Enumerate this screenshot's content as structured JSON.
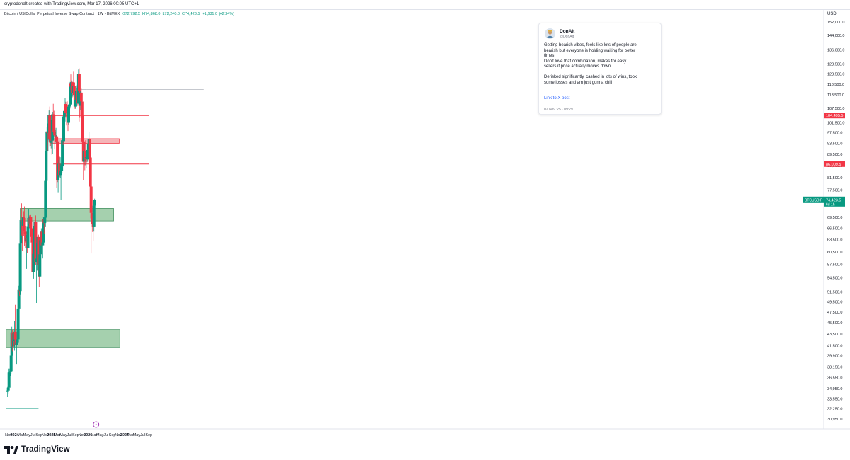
{
  "header": {
    "created_by": "cryptodonalt created with TradingView.com, Mar 17, 2026 00:05 UTC+1",
    "symbol_title": "Bitcoin / US Dollar Perpetual Inverse Swap Contract · 1W · BitMEX",
    "ohlc": {
      "o": "O72,792.5",
      "h": "H74,868.0",
      "l": "L72,240.0",
      "c": "C74,423.5",
      "change": "+1,631.0 (+2.24%)"
    },
    "currency": "USD"
  },
  "branding": {
    "logo_text": "TradingView"
  },
  "tweet": {
    "name": "DonAlt",
    "handle": "@DonAlt",
    "paragraph1": [
      "Getting bearish vibes, feels like lots of people are",
      "bearish but everyone is holding waiting for better",
      "times",
      "Don't love that combination, makes for easy",
      "sellers if price actually moves down"
    ],
    "paragraph2": [
      "Derisked significantly, cashed in lots of wins, took",
      "some losses and am just gonna chill"
    ],
    "link_label": "Link to X post",
    "date": "02 Nov '25 · 09:29"
  },
  "colors": {
    "up": "#089981",
    "down": "#f23645",
    "green_zone_fill": "#a5d0ae",
    "green_zone_border": "#3f8f5c",
    "red_zone_fill": "#f5b5b8",
    "red_line": "#f23645",
    "accent": "#2962ff"
  },
  "chart_data": {
    "type": "candlestick",
    "timeframe": "1W",
    "y_scale": "log",
    "ylim": [
      29750,
      160000
    ],
    "y_ticks": [
      30950,
      32250,
      33550,
      34950,
      36550,
      38150,
      39900,
      41500,
      43500,
      45500,
      47500,
      49500,
      51500,
      54500,
      57500,
      60500,
      63500,
      66500,
      69500,
      73500,
      77500,
      81500,
      85500,
      89500,
      93500,
      97500,
      101500,
      107500,
      113500,
      118500,
      123500,
      128500,
      136000,
      144000,
      152000
    ],
    "x_ticks": [
      "Nov",
      "2024",
      "Mar",
      "May",
      "Jul",
      "Sep",
      "Nov",
      "2025",
      "Mar",
      "May",
      "Jul",
      "Sep",
      "Nov",
      "2026",
      "Mar",
      "May",
      "Jul",
      "Sep",
      "Nov",
      "2027",
      "Mar",
      "May",
      "Jul",
      "Sep"
    ],
    "bold_x_ticks": [
      "2024",
      "2025",
      "2026",
      "2027"
    ],
    "price_labels": [
      {
        "label": "104,495.5",
        "value": 104495.5
      },
      {
        "label": "86,009.5",
        "value": 86009.5
      }
    ],
    "last_price": {
      "symbol": "BTCUSD.P",
      "value_label": "74,423.5",
      "countdown": "6d 1h",
      "value": 74423.5
    },
    "zones": [
      {
        "kind": "support",
        "from": "2024-02-26",
        "to": "2026-09-14",
        "low": 68500,
        "high": 72000
      },
      {
        "kind": "support",
        "from": "2023-10-09",
        "to": "2026-11-16",
        "low": 41200,
        "high": 44300
      },
      {
        "kind": "resistance",
        "from": "2024-12-30",
        "to": "2026-11-09",
        "low": 93500,
        "high": 95200
      }
    ],
    "lines": [
      {
        "kind": "resistance",
        "value": 104495.5,
        "from": "2024-11-25",
        "to": "2027-08-30"
      },
      {
        "kind": "resistance",
        "value": 86009.5,
        "from": "2025-01-20",
        "to": "2027-08-30"
      },
      {
        "kind": "tweet-connector",
        "value": 116000,
        "from": "2025-10-06",
        "to": "2025-12-22"
      },
      {
        "kind": "range-marker",
        "value": 32300,
        "from": "2023-10-09",
        "to": "2024-08-26"
      }
    ],
    "candles": [
      {
        "date": "2023-10-23",
        "o": 34500,
        "h": 35200,
        "l": 33800,
        "c": 34700
      },
      {
        "date": "2023-10-30",
        "o": 34700,
        "h": 35900,
        "l": 34200,
        "c": 35100
      },
      {
        "date": "2023-11-06",
        "o": 35100,
        "h": 37900,
        "l": 34900,
        "c": 37300
      },
      {
        "date": "2023-11-13",
        "o": 37300,
        "h": 37900,
        "l": 35600,
        "c": 37400
      },
      {
        "date": "2023-11-20",
        "o": 37400,
        "h": 38400,
        "l": 36800,
        "c": 37500
      },
      {
        "date": "2023-11-27",
        "o": 37500,
        "h": 40200,
        "l": 37100,
        "c": 39900
      },
      {
        "date": "2023-12-04",
        "o": 39900,
        "h": 44800,
        "l": 39600,
        "c": 43800
      },
      {
        "date": "2023-12-11",
        "o": 43800,
        "h": 44300,
        "l": 40600,
        "c": 41400
      },
      {
        "date": "2023-12-18",
        "o": 41400,
        "h": 44100,
        "l": 40900,
        "c": 43600
      },
      {
        "date": "2023-12-25",
        "o": 43600,
        "h": 43800,
        "l": 41400,
        "c": 42300
      },
      {
        "date": "2024-01-01",
        "o": 42300,
        "h": 45900,
        "l": 40700,
        "c": 43900
      },
      {
        "date": "2024-01-08",
        "o": 43900,
        "h": 48900,
        "l": 41700,
        "c": 42600
      },
      {
        "date": "2024-01-15",
        "o": 42600,
        "h": 43200,
        "l": 40500,
        "c": 41600
      },
      {
        "date": "2024-01-22",
        "o": 41600,
        "h": 42300,
        "l": 38500,
        "c": 42100
      },
      {
        "date": "2024-01-29",
        "o": 42100,
        "h": 43800,
        "l": 41800,
        "c": 42600
      },
      {
        "date": "2024-02-05",
        "o": 42600,
        "h": 48500,
        "l": 42300,
        "c": 48200
      },
      {
        "date": "2024-02-12",
        "o": 48200,
        "h": 52800,
        "l": 47700,
        "c": 51900
      },
      {
        "date": "2024-02-19",
        "o": 51900,
        "h": 52900,
        "l": 50700,
        "c": 51700
      },
      {
        "date": "2024-02-26",
        "o": 51700,
        "h": 63900,
        "l": 50900,
        "c": 62500
      },
      {
        "date": "2024-03-04",
        "o": 62500,
        "h": 69300,
        "l": 59500,
        "c": 68700
      },
      {
        "date": "2024-03-11",
        "o": 68700,
        "h": 73500,
        "l": 64600,
        "c": 68400
      },
      {
        "date": "2024-03-18",
        "o": 68400,
        "h": 68600,
        "l": 60800,
        "c": 67200
      },
      {
        "date": "2024-03-25",
        "o": 67200,
        "h": 71600,
        "l": 66500,
        "c": 69600
      },
      {
        "date": "2024-04-01",
        "o": 69600,
        "h": 71200,
        "l": 64500,
        "c": 69300
      },
      {
        "date": "2024-04-08",
        "o": 69300,
        "h": 72600,
        "l": 62000,
        "c": 65600
      },
      {
        "date": "2024-04-15",
        "o": 65600,
        "h": 67200,
        "l": 59700,
        "c": 64900
      },
      {
        "date": "2024-04-22",
        "o": 64900,
        "h": 67000,
        "l": 62800,
        "c": 63200
      },
      {
        "date": "2024-04-29",
        "o": 63200,
        "h": 64700,
        "l": 56500,
        "c": 63900
      },
      {
        "date": "2024-05-06",
        "o": 63900,
        "h": 64600,
        "l": 60200,
        "c": 61500
      },
      {
        "date": "2024-05-13",
        "o": 61500,
        "h": 67700,
        "l": 60700,
        "c": 66900
      },
      {
        "date": "2024-05-20",
        "o": 66900,
        "h": 71900,
        "l": 66500,
        "c": 69300
      },
      {
        "date": "2024-05-27",
        "o": 69300,
        "h": 70000,
        "l": 66700,
        "c": 67800
      },
      {
        "date": "2024-06-03",
        "o": 67800,
        "h": 71900,
        "l": 67600,
        "c": 69600
      },
      {
        "date": "2024-06-10",
        "o": 69600,
        "h": 70100,
        "l": 65100,
        "c": 66500
      },
      {
        "date": "2024-06-17",
        "o": 66500,
        "h": 67100,
        "l": 63400,
        "c": 64200
      },
      {
        "date": "2024-06-24",
        "o": 64200,
        "h": 64500,
        "l": 58500,
        "c": 62800
      },
      {
        "date": "2024-07-01",
        "o": 62800,
        "h": 63800,
        "l": 53500,
        "c": 55800
      },
      {
        "date": "2024-07-08",
        "o": 55800,
        "h": 60200,
        "l": 54300,
        "c": 60000
      },
      {
        "date": "2024-07-15",
        "o": 60000,
        "h": 68300,
        "l": 59800,
        "c": 67100
      },
      {
        "date": "2024-07-22",
        "o": 67100,
        "h": 69800,
        "l": 63500,
        "c": 68200
      },
      {
        "date": "2024-07-29",
        "o": 68200,
        "h": 70000,
        "l": 57300,
        "c": 58100
      },
      {
        "date": "2024-08-05",
        "o": 58100,
        "h": 62700,
        "l": 49300,
        "c": 58700
      },
      {
        "date": "2024-08-12",
        "o": 58700,
        "h": 61800,
        "l": 56100,
        "c": 58900
      },
      {
        "date": "2024-08-19",
        "o": 58900,
        "h": 65000,
        "l": 57800,
        "c": 64200
      },
      {
        "date": "2024-08-26",
        "o": 64200,
        "h": 64800,
        "l": 57200,
        "c": 57300
      },
      {
        "date": "2024-09-02",
        "o": 57300,
        "h": 59800,
        "l": 52600,
        "c": 54800
      },
      {
        "date": "2024-09-09",
        "o": 54800,
        "h": 60600,
        "l": 54600,
        "c": 59900
      },
      {
        "date": "2024-09-16",
        "o": 59900,
        "h": 64100,
        "l": 57600,
        "c": 63400
      },
      {
        "date": "2024-09-23",
        "o": 63400,
        "h": 66500,
        "l": 62700,
        "c": 65600
      },
      {
        "date": "2024-09-30",
        "o": 65600,
        "h": 66100,
        "l": 59900,
        "c": 62100
      },
      {
        "date": "2024-10-07",
        "o": 62100,
        "h": 64500,
        "l": 58900,
        "c": 62800
      },
      {
        "date": "2024-10-14",
        "o": 62800,
        "h": 69500,
        "l": 62200,
        "c": 69000
      },
      {
        "date": "2024-10-21",
        "o": 69000,
        "h": 69500,
        "l": 65100,
        "c": 67900
      },
      {
        "date": "2024-10-28",
        "o": 67900,
        "h": 73600,
        "l": 67600,
        "c": 69400
      },
      {
        "date": "2024-11-04",
        "o": 69400,
        "h": 81500,
        "l": 66800,
        "c": 80400
      },
      {
        "date": "2024-11-11",
        "o": 80400,
        "h": 93400,
        "l": 80300,
        "c": 90600
      },
      {
        "date": "2024-11-18",
        "o": 90600,
        "h": 99600,
        "l": 89400,
        "c": 98000
      },
      {
        "date": "2024-11-25",
        "o": 98000,
        "h": 98900,
        "l": 90800,
        "c": 97400
      },
      {
        "date": "2024-12-02",
        "o": 97400,
        "h": 104000,
        "l": 94700,
        "c": 101200
      },
      {
        "date": "2024-12-09",
        "o": 101200,
        "h": 106600,
        "l": 94200,
        "c": 104500
      },
      {
        "date": "2024-12-16",
        "o": 104500,
        "h": 108300,
        "l": 92200,
        "c": 95200
      },
      {
        "date": "2024-12-23",
        "o": 95200,
        "h": 99900,
        "l": 92500,
        "c": 93700
      },
      {
        "date": "2024-12-30",
        "o": 93700,
        "h": 102700,
        "l": 91600,
        "c": 98400
      },
      {
        "date": "2025-01-06",
        "o": 98400,
        "h": 102700,
        "l": 89300,
        "c": 94500
      },
      {
        "date": "2025-01-13",
        "o": 94500,
        "h": 106000,
        "l": 89500,
        "c": 105000
      },
      {
        "date": "2025-01-20",
        "o": 105000,
        "h": 109500,
        "l": 100300,
        "c": 104700
      },
      {
        "date": "2025-01-27",
        "o": 104700,
        "h": 106500,
        "l": 97800,
        "c": 97700
      },
      {
        "date": "2025-02-03",
        "o": 97700,
        "h": 102500,
        "l": 91200,
        "c": 96500
      },
      {
        "date": "2025-02-10",
        "o": 96500,
        "h": 98800,
        "l": 94100,
        "c": 96100
      },
      {
        "date": "2025-02-17",
        "o": 96100,
        "h": 99400,
        "l": 93500,
        "c": 96100
      },
      {
        "date": "2025-02-24",
        "o": 96100,
        "h": 96500,
        "l": 78200,
        "c": 94200
      },
      {
        "date": "2025-03-03",
        "o": 94200,
        "h": 94400,
        "l": 80000,
        "c": 80700
      },
      {
        "date": "2025-03-10",
        "o": 80700,
        "h": 84800,
        "l": 76600,
        "c": 84200
      },
      {
        "date": "2025-03-17",
        "o": 84200,
        "h": 87400,
        "l": 81200,
        "c": 86100
      },
      {
        "date": "2025-03-24",
        "o": 86100,
        "h": 88600,
        "l": 81600,
        "c": 82300
      },
      {
        "date": "2025-03-31",
        "o": 82300,
        "h": 88400,
        "l": 81300,
        "c": 83000
      },
      {
        "date": "2025-04-07",
        "o": 83000,
        "h": 85900,
        "l": 74500,
        "c": 83700
      },
      {
        "date": "2025-04-14",
        "o": 83700,
        "h": 86500,
        "l": 83000,
        "c": 85200
      },
      {
        "date": "2025-04-21",
        "o": 85200,
        "h": 95700,
        "l": 83900,
        "c": 94600
      },
      {
        "date": "2025-04-28",
        "o": 94600,
        "h": 97900,
        "l": 92800,
        "c": 94300
      },
      {
        "date": "2025-05-05",
        "o": 94300,
        "h": 104300,
        "l": 93400,
        "c": 104100
      },
      {
        "date": "2025-05-12",
        "o": 104100,
        "h": 105800,
        "l": 100800,
        "c": 106400
      },
      {
        "date": "2025-05-19",
        "o": 106400,
        "h": 111900,
        "l": 102000,
        "c": 109400
      },
      {
        "date": "2025-05-26",
        "o": 109400,
        "h": 110400,
        "l": 103600,
        "c": 105700
      },
      {
        "date": "2025-06-02",
        "o": 105700,
        "h": 106900,
        "l": 100400,
        "c": 105600
      },
      {
        "date": "2025-06-09",
        "o": 105600,
        "h": 110600,
        "l": 102600,
        "c": 105500
      },
      {
        "date": "2025-06-16",
        "o": 105500,
        "h": 108900,
        "l": 98200,
        "c": 101500
      },
      {
        "date": "2025-06-23",
        "o": 101500,
        "h": 108400,
        "l": 100800,
        "c": 108300
      },
      {
        "date": "2025-06-30",
        "o": 108300,
        "h": 110500,
        "l": 105100,
        "c": 109200
      },
      {
        "date": "2025-07-07",
        "o": 109200,
        "h": 119500,
        "l": 107500,
        "c": 119000
      },
      {
        "date": "2025-07-14",
        "o": 119000,
        "h": 123200,
        "l": 115800,
        "c": 117300
      },
      {
        "date": "2025-07-21",
        "o": 117300,
        "h": 120200,
        "l": 114700,
        "c": 119400
      },
      {
        "date": "2025-07-28",
        "o": 119400,
        "h": 119800,
        "l": 112000,
        "c": 114200
      },
      {
        "date": "2025-08-04",
        "o": 114200,
        "h": 119300,
        "l": 112700,
        "c": 119300
      },
      {
        "date": "2025-08-11",
        "o": 119300,
        "h": 124500,
        "l": 116800,
        "c": 117500
      },
      {
        "date": "2025-08-18",
        "o": 117500,
        "h": 117600,
        "l": 110700,
        "c": 113500
      },
      {
        "date": "2025-08-25",
        "o": 113500,
        "h": 113900,
        "l": 107300,
        "c": 108300
      },
      {
        "date": "2025-09-01",
        "o": 108300,
        "h": 113400,
        "l": 107300,
        "c": 111100
      },
      {
        "date": "2025-09-08",
        "o": 111100,
        "h": 116800,
        "l": 110600,
        "c": 115300
      },
      {
        "date": "2025-09-15",
        "o": 115300,
        "h": 117900,
        "l": 114700,
        "c": 115300
      },
      {
        "date": "2025-09-22",
        "o": 115300,
        "h": 115400,
        "l": 108600,
        "c": 109600
      },
      {
        "date": "2025-09-29",
        "o": 109600,
        "h": 125600,
        "l": 109500,
        "c": 123500
      },
      {
        "date": "2025-10-06",
        "o": 123500,
        "h": 126200,
        "l": 102000,
        "c": 115200
      },
      {
        "date": "2025-10-13",
        "o": 115200,
        "h": 115900,
        "l": 103500,
        "c": 108600
      },
      {
        "date": "2025-10-20",
        "o": 108600,
        "h": 115400,
        "l": 106700,
        "c": 114500
      },
      {
        "date": "2025-10-27",
        "o": 114500,
        "h": 116400,
        "l": 106200,
        "c": 110500
      },
      {
        "date": "2025-11-03",
        "o": 110500,
        "h": 110700,
        "l": 98900,
        "c": 104700
      },
      {
        "date": "2025-11-10",
        "o": 104700,
        "h": 107500,
        "l": 94000,
        "c": 94200
      },
      {
        "date": "2025-11-17",
        "o": 94200,
        "h": 96000,
        "l": 80600,
        "c": 86800
      },
      {
        "date": "2025-11-24",
        "o": 86800,
        "h": 93100,
        "l": 85600,
        "c": 90600
      },
      {
        "date": "2025-12-01",
        "o": 90600,
        "h": 94100,
        "l": 83900,
        "c": 88200
      },
      {
        "date": "2025-12-08",
        "o": 88200,
        "h": 94600,
        "l": 85600,
        "c": 88100
      },
      {
        "date": "2025-12-15",
        "o": 88100,
        "h": 90400,
        "l": 84500,
        "c": 88400
      },
      {
        "date": "2025-12-22",
        "o": 88400,
        "h": 90500,
        "l": 86600,
        "c": 87600
      },
      {
        "date": "2025-12-29",
        "o": 87600,
        "h": 91300,
        "l": 86800,
        "c": 91000
      },
      {
        "date": "2026-01-05",
        "o": 91000,
        "h": 94800,
        "l": 89800,
        "c": 93200
      },
      {
        "date": "2026-01-12",
        "o": 93200,
        "h": 97800,
        "l": 91600,
        "c": 95100
      },
      {
        "date": "2026-01-19",
        "o": 95100,
        "h": 95300,
        "l": 86100,
        "c": 88300
      },
      {
        "date": "2026-01-26",
        "o": 88300,
        "h": 88900,
        "l": 75500,
        "c": 78600
      },
      {
        "date": "2026-02-02",
        "o": 78600,
        "h": 79300,
        "l": 60100,
        "c": 70700
      },
      {
        "date": "2026-02-09",
        "o": 70700,
        "h": 72300,
        "l": 67800,
        "c": 69200
      },
      {
        "date": "2026-02-16",
        "o": 69200,
        "h": 70600,
        "l": 65500,
        "c": 67600
      },
      {
        "date": "2026-02-23",
        "o": 67600,
        "h": 69800,
        "l": 63300,
        "c": 66800
      },
      {
        "date": "2026-03-02",
        "o": 66800,
        "h": 74000,
        "l": 65600,
        "c": 72800
      },
      {
        "date": "2026-03-09",
        "o": 72792.5,
        "h": 74868,
        "l": 72240,
        "c": 74423.5
      }
    ]
  }
}
